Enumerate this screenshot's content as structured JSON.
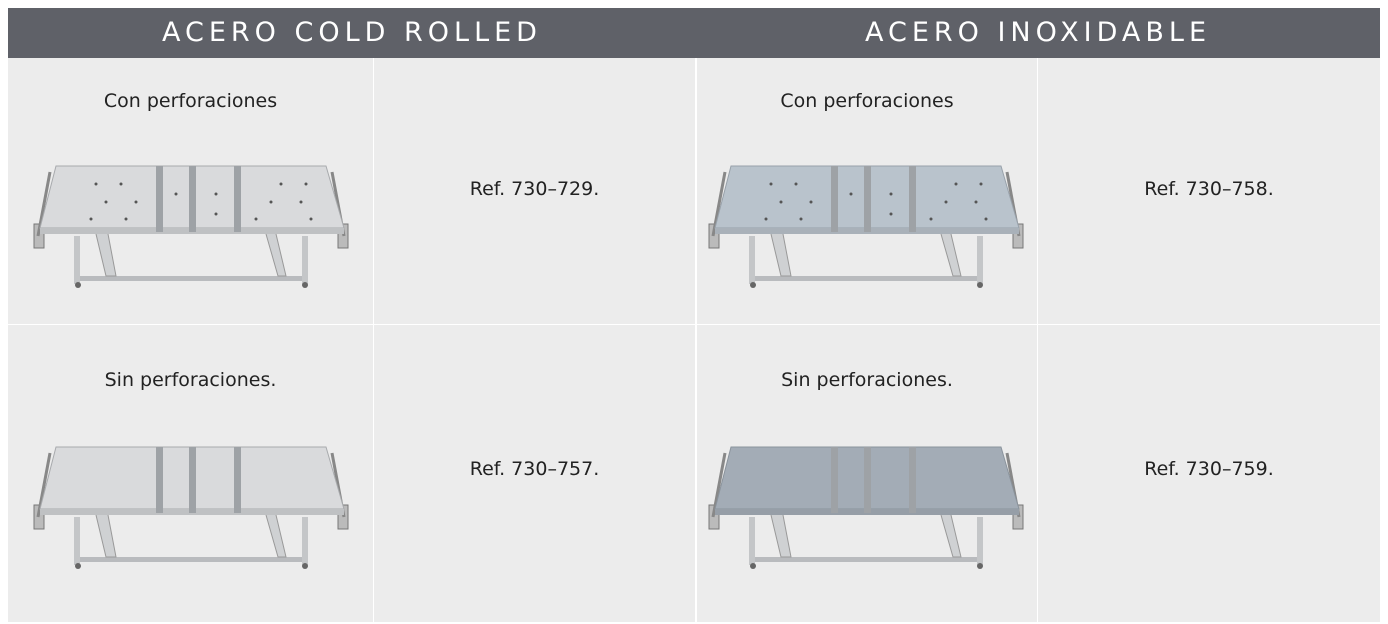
{
  "table": {
    "headers": [
      "ACERO COLD ROLLED",
      "ACERO INOXIDABLE"
    ],
    "rows": [
      [
        {
          "label": "Con perforaciones",
          "ref": "Ref. 730–729."
        },
        {
          "label": "Con perforaciones",
          "ref": "Ref. 730–758."
        }
      ],
      [
        {
          "label": "Sin perforaciones.",
          "ref": "Ref. 730–757."
        },
        {
          "label": "Sin perforaciones.",
          "ref": "Ref. 730–759."
        }
      ]
    ]
  }
}
